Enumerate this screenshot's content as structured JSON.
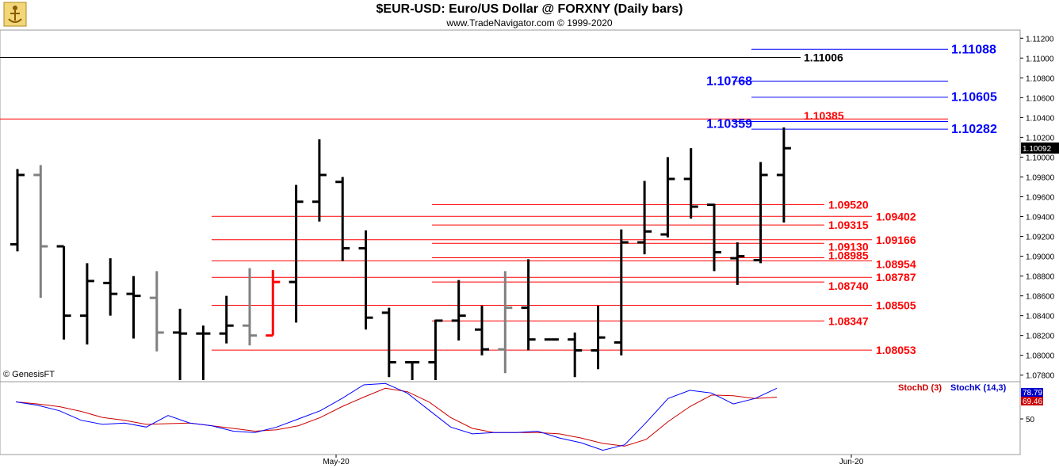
{
  "header": {
    "title": "$EUR-USD:  Euro/US Dollar @ FORXNY  (Daily bars)",
    "subtitle": "www.TradeNavigator.com © 1999-2020"
  },
  "footer": {
    "copyright": "© GenesisFT"
  },
  "chart_data": {
    "type": "ohlc",
    "price_axis": {
      "ticks": [
        "1.11200",
        "1.11000",
        "1.10800",
        "1.10600",
        "1.10400",
        "1.10200",
        "1.10000",
        "1.09800",
        "1.09600",
        "1.09400",
        "1.09200",
        "1.09000",
        "1.08800",
        "1.08600",
        "1.08400",
        "1.08200",
        "1.08000",
        "1.07800"
      ],
      "last_price": "1.10092",
      "range": [
        1.0775,
        1.1125
      ]
    },
    "x_axis": {
      "labels": [
        "May-20",
        "Jun-20"
      ]
    },
    "bars": [
      {
        "o": 1.0912,
        "h": 1.0988,
        "l": 1.0905,
        "c": 1.0982,
        "color": "#000000"
      },
      {
        "o": 1.0982,
        "h": 1.0992,
        "l": 1.0858,
        "c": 1.091,
        "color": "#808080"
      },
      {
        "o": 1.091,
        "h": 1.091,
        "l": 1.0816,
        "c": 1.084,
        "color": "#000000"
      },
      {
        "o": 1.084,
        "h": 1.0893,
        "l": 1.0811,
        "c": 1.0875,
        "color": "#000000"
      },
      {
        "o": 1.0873,
        "h": 1.0898,
        "l": 1.084,
        "c": 1.0862,
        "color": "#000000"
      },
      {
        "o": 1.0862,
        "h": 1.088,
        "l": 1.0817,
        "c": 1.086,
        "color": "#000000"
      },
      {
        "o": 1.0858,
        "h": 1.0885,
        "l": 1.0804,
        "c": 1.0823,
        "color": "#808080"
      },
      {
        "o": 1.0823,
        "h": 1.0847,
        "l": 1.0775,
        "c": 1.0822,
        "color": "#000000"
      },
      {
        "o": 1.0822,
        "h": 1.083,
        "l": 1.0775,
        "c": 1.0822,
        "color": "#000000"
      },
      {
        "o": 1.0822,
        "h": 1.086,
        "l": 1.0812,
        "c": 1.083,
        "color": "#000000"
      },
      {
        "o": 1.083,
        "h": 1.0888,
        "l": 1.081,
        "c": 1.082,
        "color": "#808080"
      },
      {
        "o": 1.082,
        "h": 1.0886,
        "l": 1.082,
        "c": 1.0874,
        "color": "#ff0000"
      },
      {
        "o": 1.0874,
        "h": 1.0972,
        "l": 1.0833,
        "c": 1.0955,
        "color": "#000000"
      },
      {
        "o": 1.0955,
        "h": 1.1018,
        "l": 1.0935,
        "c": 1.0982,
        "color": "#000000"
      },
      {
        "o": 1.0975,
        "h": 1.098,
        "l": 1.0895,
        "c": 1.0908,
        "color": "#000000"
      },
      {
        "o": 1.0908,
        "h": 1.0926,
        "l": 1.0826,
        "c": 1.0838,
        "color": "#000000"
      },
      {
        "o": 1.0843,
        "h": 1.0848,
        "l": 1.0778,
        "c": 1.0793,
        "color": "#000000"
      },
      {
        "o": 1.0793,
        "h": 1.0793,
        "l": 1.0775,
        "c": 1.0793,
        "color": "#000000"
      },
      {
        "o": 1.0793,
        "h": 1.0836,
        "l": 1.0775,
        "c": 1.0835,
        "color": "#000000"
      },
      {
        "o": 1.0835,
        "h": 1.0876,
        "l": 1.0815,
        "c": 1.084,
        "color": "#000000"
      },
      {
        "o": 1.0826,
        "h": 1.085,
        "l": 1.08,
        "c": 1.0806,
        "color": "#000000"
      },
      {
        "o": 1.0806,
        "h": 1.0885,
        "l": 1.0782,
        "c": 1.0848,
        "color": "#808080"
      },
      {
        "o": 1.0848,
        "h": 1.0897,
        "l": 1.0805,
        "c": 1.0816,
        "color": "#000000"
      },
      {
        "o": 1.0816,
        "h": 1.0816,
        "l": 1.0816,
        "c": 1.0816,
        "color": "#000000"
      },
      {
        "o": 1.0816,
        "h": 1.0823,
        "l": 1.0778,
        "c": 1.0805,
        "color": "#000000"
      },
      {
        "o": 1.0805,
        "h": 1.085,
        "l": 1.0786,
        "c": 1.0818,
        "color": "#000000"
      },
      {
        "o": 1.0813,
        "h": 1.0927,
        "l": 1.08,
        "c": 1.0914,
        "color": "#000000"
      },
      {
        "o": 1.0914,
        "h": 1.0976,
        "l": 1.0902,
        "c": 1.0925,
        "color": "#000000"
      },
      {
        "o": 1.0922,
        "h": 1.1,
        "l": 1.0919,
        "c": 1.0978,
        "color": "#000000"
      },
      {
        "o": 1.0978,
        "h": 1.1009,
        "l": 1.0938,
        "c": 1.095,
        "color": "#000000"
      },
      {
        "o": 1.0952,
        "h": 1.0953,
        "l": 1.0885,
        "c": 1.0904,
        "color": "#000000"
      },
      {
        "o": 1.0898,
        "h": 1.0914,
        "l": 1.0871,
        "c": 1.09,
        "color": "#000000"
      },
      {
        "o": 1.0896,
        "h": 1.0995,
        "l": 1.0893,
        "c": 1.0982,
        "color": "#000000"
      },
      {
        "o": 1.0982,
        "h": 1.103,
        "l": 1.0934,
        "c": 1.1009,
        "color": "#000000"
      }
    ],
    "levels": [
      {
        "label": "1.11088",
        "value": 1.11088,
        "color": "#0000ff"
      },
      {
        "label": "1.11006",
        "value": 1.11006,
        "color": "#000000"
      },
      {
        "label": "1.10768",
        "value": 1.10768,
        "color": "#0000ff"
      },
      {
        "label": "1.10605",
        "value": 1.10605,
        "color": "#0000ff"
      },
      {
        "label": "1.10385",
        "value": 1.10385,
        "color": "#ff0000"
      },
      {
        "label": "1.10359",
        "value": 1.10359,
        "color": "#0000ff"
      },
      {
        "label": "1.10282",
        "value": 1.10282,
        "color": "#0000ff"
      },
      {
        "label": "1.09520",
        "value": 1.0952,
        "color": "#ff0000"
      },
      {
        "label": "1.09402",
        "value": 1.09402,
        "color": "#ff0000"
      },
      {
        "label": "1.09315",
        "value": 1.09315,
        "color": "#ff0000"
      },
      {
        "label": "1.09166",
        "value": 1.09166,
        "color": "#ff0000"
      },
      {
        "label": "1.09130",
        "value": 1.0913,
        "color": "#ff0000"
      },
      {
        "label": "1.08985",
        "value": 1.08985,
        "color": "#ff0000"
      },
      {
        "label": "1.08954",
        "value": 1.08954,
        "color": "#ff0000"
      },
      {
        "label": "1.08787",
        "value": 1.08787,
        "color": "#ff0000"
      },
      {
        "label": "1.08740",
        "value": 1.0874,
        "color": "#ff0000"
      },
      {
        "label": "1.08505",
        "value": 1.08505,
        "color": "#ff0000"
      },
      {
        "label": "1.08347",
        "value": 1.08347,
        "color": "#ff0000"
      },
      {
        "label": "1.08053",
        "value": 1.08053,
        "color": "#ff0000"
      }
    ],
    "stochastic": {
      "labels": [
        "StochD (3)",
        "StochK (14,3)"
      ],
      "k_name": "StochK (14,3)",
      "d_name": "StochD (3)",
      "k_color": "#0000ff",
      "d_color": "#cc0000",
      "k_value": "78.79",
      "d_value": "69.46",
      "axis_ticks": [
        "50"
      ],
      "range": [
        0,
        100
      ],
      "k": [
        75,
        70,
        62,
        48,
        42,
        44,
        38,
        55,
        44,
        40,
        32,
        30,
        38,
        50,
        62,
        80,
        100,
        102,
        88,
        63,
        38,
        28,
        30,
        30,
        32,
        22,
        15,
        4,
        12,
        45,
        80,
        92,
        88,
        72,
        80,
        95
      ],
      "d": [
        75,
        72,
        68,
        61,
        52,
        48,
        42,
        43,
        44,
        40,
        36,
        32,
        34,
        40,
        52,
        68,
        82,
        95,
        90,
        75,
        52,
        36,
        30,
        30,
        30,
        28,
        22,
        14,
        10,
        20,
        46,
        68,
        85,
        84,
        80,
        82
      ]
    }
  }
}
